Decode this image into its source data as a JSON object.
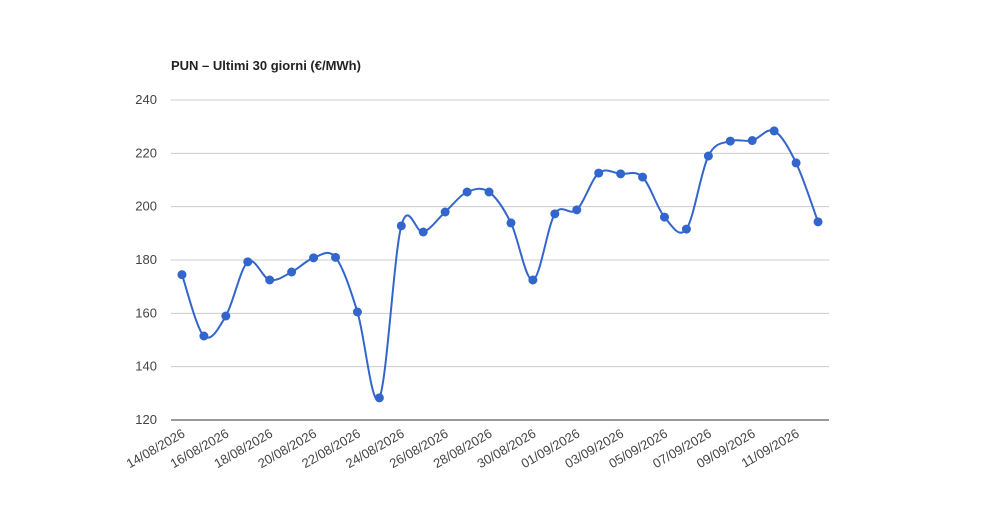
{
  "chart_data": {
    "type": "line",
    "title": "PUN – Ultimi 30 giorni (€/MWh)",
    "categories": [
      "14/08/2026",
      null,
      "16/08/2026",
      null,
      "18/08/2026",
      null,
      "20/08/2026",
      null,
      "22/08/2026",
      null,
      "24/08/2026",
      null,
      "26/08/2026",
      null,
      "28/08/2026",
      null,
      "30/08/2026",
      null,
      "01/09/2026",
      null,
      "03/09/2026",
      null,
      "05/09/2026",
      null,
      "07/09/2026",
      null,
      "09/09/2026",
      null,
      "11/09/2026",
      null
    ],
    "series": [
      {
        "color": "#3366cc",
        "values": [
          174.5,
          151.5,
          159,
          179.3,
          172.5,
          175.5,
          180.8,
          181,
          160.5,
          128.3,
          192.8,
          190.5,
          198,
          205.5,
          205.5,
          193.9,
          172.5,
          197.3,
          198.8,
          212.6,
          212.3,
          211.1,
          196.1,
          191.6,
          219,
          224.6,
          224.8,
          228.4,
          216.4,
          194.3
        ]
      }
    ],
    "ylim": [
      120,
      240
    ],
    "yticks": [
      120,
      140,
      160,
      180,
      200,
      220,
      240
    ],
    "grid": true
  }
}
